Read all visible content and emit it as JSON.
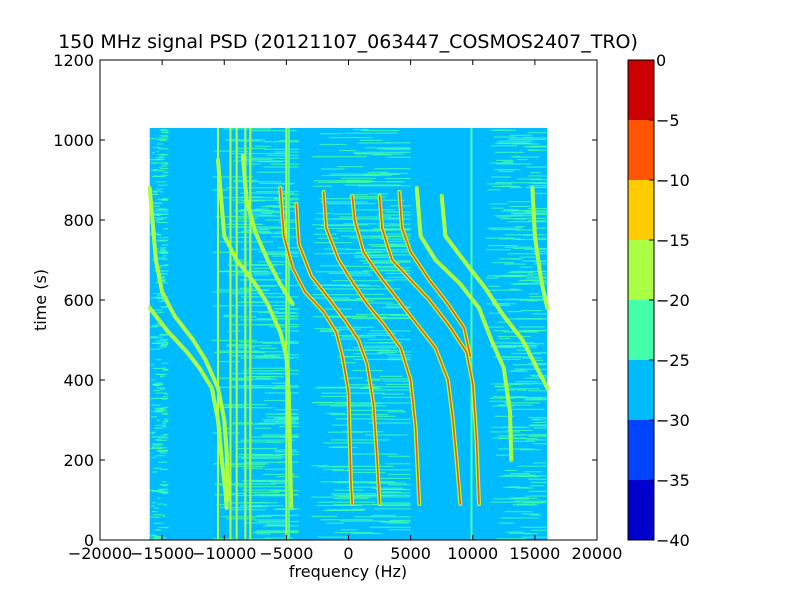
{
  "chart_data": {
    "type": "heatmap",
    "title": "150 MHz signal PSD (20121107_063447_COSMOS2407_TRO)",
    "xlabel": "frequency (Hz)",
    "ylabel": "time (s)",
    "xlim": [
      -20000,
      20000
    ],
    "ylim": [
      0,
      1200
    ],
    "x_ticks": [
      -20000,
      -15000,
      -10000,
      -5000,
      0,
      5000,
      10000,
      15000,
      20000
    ],
    "x_tick_labels": [
      "−20000",
      "−15000",
      "−10000",
      "−5000",
      "0",
      "5000",
      "10000",
      "15000",
      "20000"
    ],
    "y_ticks": [
      0,
      200,
      400,
      600,
      800,
      1000,
      1200
    ],
    "y_tick_labels": [
      "0",
      "200",
      "400",
      "600",
      "800",
      "1000",
      "1200"
    ],
    "data_extent": {
      "x": [
        -16000,
        16000
      ],
      "y": [
        0,
        1030
      ]
    },
    "colorbar": {
      "levels": [
        -40,
        -35,
        -30,
        -25,
        -20,
        -15,
        -10,
        -5,
        0
      ],
      "tick_labels": [
        "−40",
        "−35",
        "−30",
        "−25",
        "−20",
        "−15",
        "−10",
        "−5",
        "0"
      ],
      "colors": [
        "#0000cc",
        "#0044ff",
        "#00bbff",
        "#44ffaa",
        "#aaff44",
        "#ffcc00",
        "#ff5500",
        "#cc0000"
      ]
    },
    "background_level_dB": -27.5,
    "noisy_column_ranges_hz": [
      [
        -16000,
        -14500
      ],
      [
        -11000,
        -4000
      ],
      [
        -3000,
        5000
      ],
      [
        11000,
        16000
      ]
    ],
    "vertical_lines": [
      {
        "x": -10500,
        "y": [
          0,
          1030
        ],
        "level_dB": -17.5
      },
      {
        "x": -9500,
        "y": [
          0,
          1030
        ],
        "level_dB": -17.5
      },
      {
        "x": -9000,
        "y": [
          0,
          1030
        ],
        "level_dB": -17.5
      },
      {
        "x": -8300,
        "y": [
          0,
          1030
        ],
        "level_dB": -17.5
      },
      {
        "x": -7900,
        "y": [
          0,
          1030
        ],
        "level_dB": -17.5
      },
      {
        "x": -5000,
        "y": [
          0,
          1030
        ],
        "level_dB": -17.5
      },
      {
        "x": -4800,
        "y": [
          0,
          1030
        ],
        "level_dB": -22.5
      },
      {
        "x": 9900,
        "y": [
          0,
          1030
        ],
        "level_dB": -22.5
      }
    ],
    "traces": [
      {
        "points": [
          [
            -16000,
            580
          ],
          [
            -14500,
            520
          ],
          [
            -13000,
            470
          ],
          [
            -12000,
            430
          ],
          [
            -11000,
            380
          ],
          [
            -10500,
            300
          ],
          [
            -10200,
            200
          ],
          [
            -9900,
            120
          ],
          [
            -9800,
            80
          ]
        ],
        "level_dB": -17.5
      },
      {
        "points": [
          [
            -16000,
            880
          ],
          [
            -15500,
            700
          ],
          [
            -15000,
            620
          ],
          [
            -14000,
            560
          ],
          [
            -12500,
            500
          ],
          [
            -11500,
            450
          ],
          [
            -10500,
            380
          ],
          [
            -10000,
            300
          ],
          [
            -9800,
            220
          ],
          [
            -9700,
            100
          ]
        ],
        "level_dB": -17.5
      },
      {
        "points": [
          [
            -10500,
            950
          ],
          [
            -10000,
            760
          ],
          [
            -9000,
            700
          ],
          [
            -7500,
            640
          ],
          [
            -6500,
            590
          ],
          [
            -5500,
            520
          ],
          [
            -5000,
            460
          ],
          [
            -4800,
            360
          ],
          [
            -4700,
            200
          ],
          [
            -4600,
            80
          ]
        ],
        "level_dB": -17.5
      },
      {
        "points": [
          [
            -5500,
            880
          ],
          [
            -5200,
            760
          ],
          [
            -4500,
            680
          ],
          [
            -3500,
            620
          ],
          [
            -2000,
            570
          ],
          [
            -1000,
            520
          ],
          [
            -500,
            460
          ],
          [
            0,
            370
          ],
          [
            100,
            250
          ],
          [
            200,
            140
          ],
          [
            300,
            90
          ]
        ],
        "level_dB": -7.5
      },
      {
        "points": [
          [
            -4200,
            840
          ],
          [
            -4000,
            740
          ],
          [
            -3000,
            660
          ],
          [
            -1500,
            600
          ],
          [
            -300,
            550
          ],
          [
            800,
            500
          ],
          [
            1500,
            440
          ],
          [
            2000,
            340
          ],
          [
            2300,
            200
          ],
          [
            2500,
            90
          ]
        ],
        "level_dB": -7.5
      },
      {
        "points": [
          [
            -2000,
            870
          ],
          [
            -1800,
            780
          ],
          [
            -800,
            700
          ],
          [
            400,
            640
          ],
          [
            1500,
            590
          ],
          [
            2800,
            540
          ],
          [
            4200,
            480
          ],
          [
            5000,
            400
          ],
          [
            5400,
            280
          ],
          [
            5600,
            150
          ],
          [
            5700,
            90
          ]
        ],
        "level_dB": -7.5
      },
      {
        "points": [
          [
            300,
            860
          ],
          [
            500,
            800
          ],
          [
            1200,
            720
          ],
          [
            2500,
            660
          ],
          [
            4000,
            600
          ],
          [
            5500,
            540
          ],
          [
            7000,
            480
          ],
          [
            8000,
            400
          ],
          [
            8400,
            300
          ],
          [
            8700,
            200
          ],
          [
            9000,
            90
          ]
        ],
        "level_dB": -7.5
      },
      {
        "points": [
          [
            2500,
            860
          ],
          [
            2700,
            780
          ],
          [
            3500,
            700
          ],
          [
            5000,
            650
          ],
          [
            6500,
            600
          ],
          [
            8000,
            540
          ],
          [
            9500,
            470
          ],
          [
            10000,
            390
          ],
          [
            10300,
            250
          ],
          [
            10500,
            90
          ]
        ],
        "level_dB": -7.5
      },
      {
        "points": [
          [
            4100,
            870
          ],
          [
            4300,
            780
          ],
          [
            5000,
            720
          ],
          [
            6500,
            650
          ],
          [
            8000,
            590
          ],
          [
            9300,
            530
          ],
          [
            9800,
            460
          ]
        ],
        "level_dB": -7.5
      },
      {
        "points": [
          [
            5500,
            880
          ],
          [
            5800,
            760
          ],
          [
            7000,
            700
          ],
          [
            9000,
            640
          ],
          [
            10500,
            580
          ],
          [
            11500,
            500
          ],
          [
            12500,
            430
          ],
          [
            13000,
            320
          ],
          [
            13100,
            200
          ]
        ],
        "level_dB": -17.5
      },
      {
        "points": [
          [
            7500,
            860
          ],
          [
            7800,
            760
          ],
          [
            9500,
            690
          ],
          [
            11000,
            630
          ],
          [
            12500,
            560
          ],
          [
            14000,
            500
          ],
          [
            15000,
            440
          ],
          [
            16000,
            380
          ]
        ],
        "level_dB": -17.5
      },
      {
        "points": [
          [
            14800,
            880
          ],
          [
            15000,
            760
          ],
          [
            15500,
            650
          ],
          [
            16000,
            580
          ]
        ],
        "level_dB": -17.5
      },
      {
        "points": [
          [
            -8500,
            960
          ],
          [
            -8200,
            850
          ],
          [
            -7500,
            770
          ],
          [
            -6500,
            700
          ],
          [
            -5500,
            640
          ],
          [
            -4500,
            590
          ]
        ],
        "level_dB": -17.5
      }
    ]
  }
}
